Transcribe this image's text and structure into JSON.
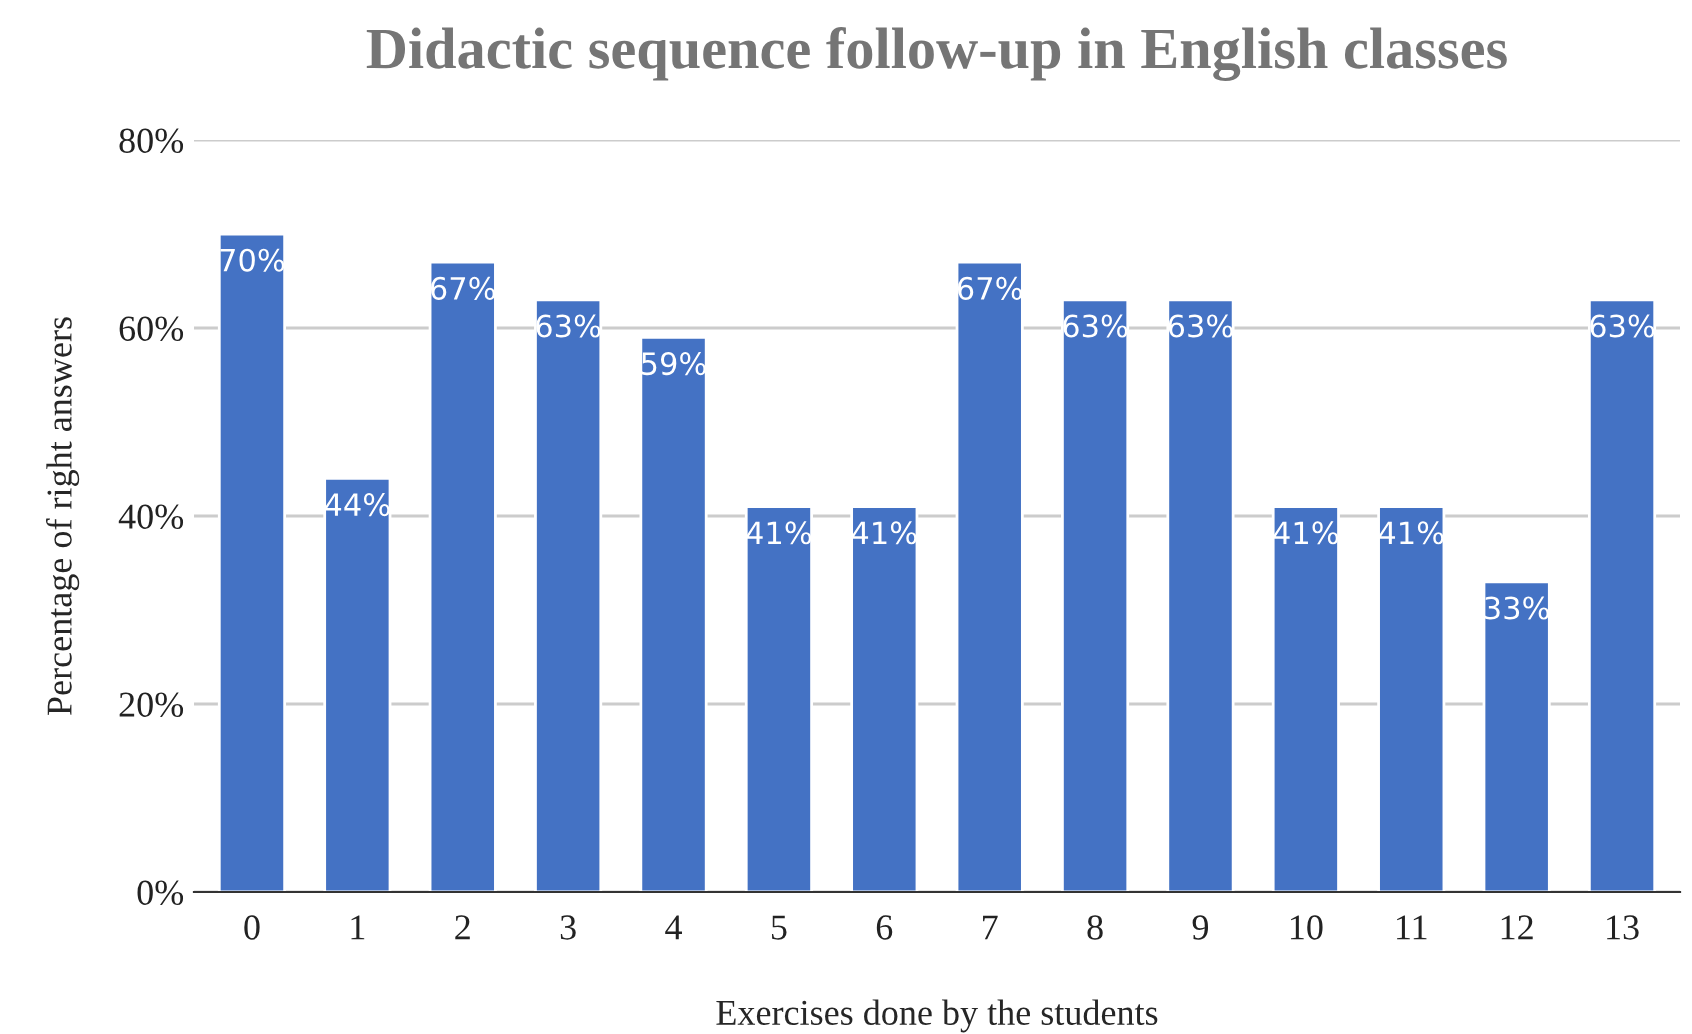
{
  "chart_data": {
    "type": "bar",
    "title": "Didactic sequence follow-up in English classes",
    "xlabel": "Exercises done by the students",
    "ylabel": "Percentage of right answers",
    "categories": [
      "0",
      "1",
      "2",
      "3",
      "4",
      "5",
      "6",
      "7",
      "8",
      "9",
      "10",
      "11",
      "12",
      "13"
    ],
    "values": [
      70,
      44,
      67,
      63,
      59,
      41,
      41,
      67,
      63,
      63,
      41,
      41,
      33,
      63
    ],
    "value_labels": [
      "70%",
      "44%",
      "67%",
      "63%",
      "59%",
      "41%",
      "41%",
      "67%",
      "63%",
      "63%",
      "41%",
      "41%",
      "33%",
      "63%"
    ],
    "color": "#4472c4",
    "ylim": [
      0,
      80
    ],
    "yticks": [
      {
        "value": 0,
        "label": "0%"
      },
      {
        "value": 20,
        "label": "20%"
      },
      {
        "value": 40,
        "label": "40%"
      },
      {
        "value": 60,
        "label": "60%"
      },
      {
        "value": 80,
        "label": "80%"
      }
    ],
    "grid": "y"
  }
}
